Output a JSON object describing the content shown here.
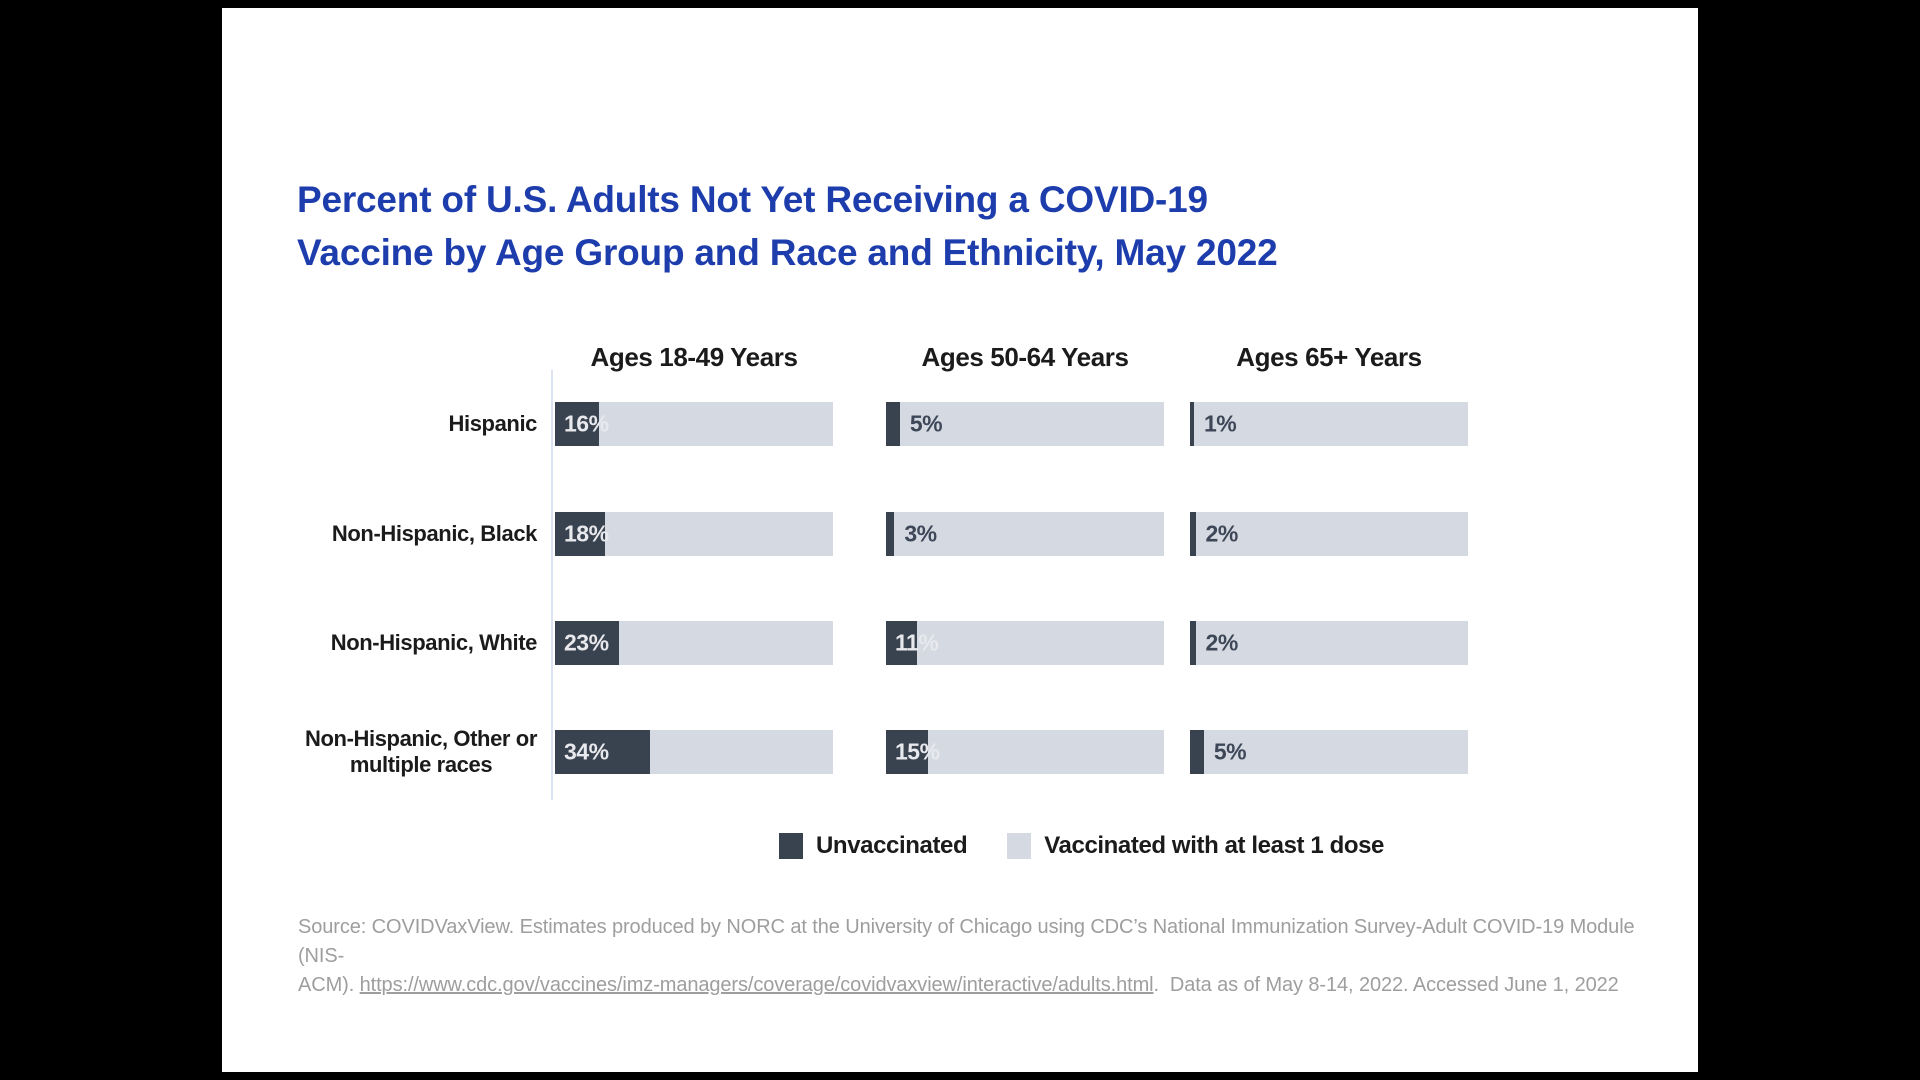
{
  "title": {
    "line1": "Percent of U.S. Adults Not Yet Receiving a COVID-19",
    "line2": "Vaccine by Age Group and Race and Ethnicity, May 2022"
  },
  "chart_data": {
    "type": "bar",
    "orientation": "horizontal",
    "stacked_100_percent": true,
    "title": "Percent of U.S. Adults Not Yet Receiving a COVID-19 Vaccine by Age Group and Race and Ethnicity, May 2022",
    "column_headers": [
      "Ages 18-49 Years",
      "Ages 50-64 Years",
      "Ages 65+ Years"
    ],
    "categories": [
      "Hispanic",
      "Non-Hispanic, Black",
      "Non-Hispanic, White",
      "Non-Hispanic, Other or\nmultiple races"
    ],
    "series": [
      {
        "name": "Ages 18-49 Years",
        "unvaccinated_values": [
          16,
          18,
          23,
          34
        ]
      },
      {
        "name": "Ages 50-64 Years",
        "unvaccinated_values": [
          5,
          3,
          11,
          15
        ]
      },
      {
        "name": "Ages 65+ Years",
        "unvaccinated_values": [
          1,
          2,
          2,
          5
        ]
      }
    ],
    "value_suffix": "%",
    "xlim": [
      0,
      100
    ],
    "grid": false,
    "legend_position": "bottom",
    "legend": [
      {
        "label": "Unvaccinated",
        "color": "#39424f"
      },
      {
        "label": "Vaccinated with at least 1 dose",
        "color": "#d5dae2"
      }
    ]
  },
  "source": {
    "line1": "Source: COVIDVaxView. Estimates produced by NORC at the University of Chicago using CDC’s National Immunization Survey-Adult COVID-19 Module (NIS-",
    "line2_prefix": "ACM). ",
    "url": "https://www.cdc.gov/vaccines/imz-managers/coverage/covidvaxview/interactive/adults.html",
    "line2_suffix": ".  Data as of May 8-14, 2022. Accessed June 1, 2022"
  },
  "colors": {
    "title_blue": "#1d3dad",
    "unvaccinated_dark": "#39424f",
    "vaccinated_light": "#d5dae2",
    "text_dark": "#1b1b1b",
    "value_label_light": "#e8e9ed",
    "value_label_dark": "#3d4757",
    "axis_line": "#dde3f3",
    "source_gray": "#9e9e9e",
    "background": "#000000",
    "slide_background": "#ffffff"
  }
}
